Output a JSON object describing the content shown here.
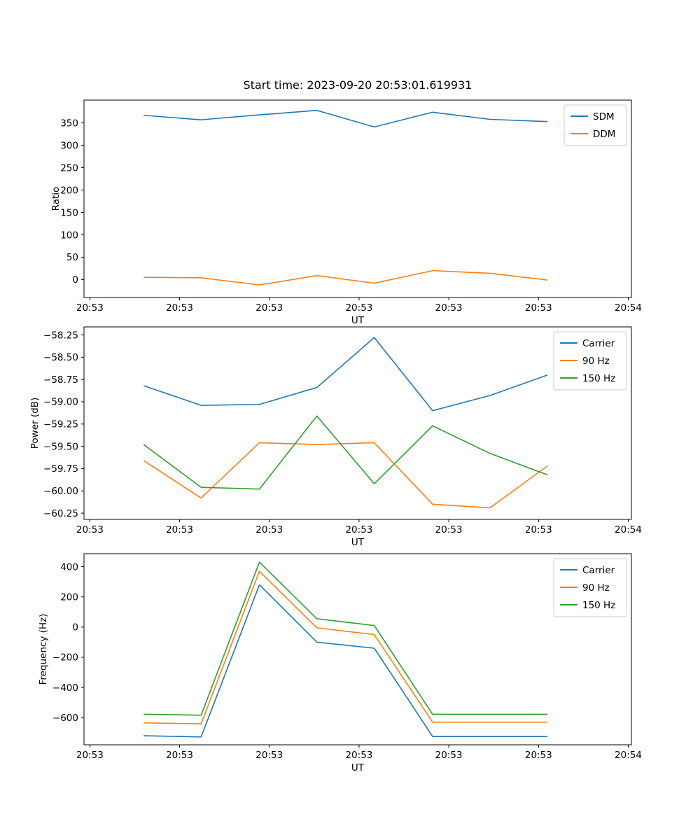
{
  "figure": {
    "title": "Start time: 2023-09-20 20:53:01.619931"
  },
  "colors": {
    "blue": "#1f77b4",
    "orange": "#ff7f0e",
    "green": "#2ca02c",
    "spine": "#000000",
    "legend_border": "#cccccc",
    "background": "#ffffff"
  },
  "chart_data": [
    {
      "type": "line",
      "title": "",
      "xlabel": "UT",
      "ylabel": "Ratio",
      "x_seconds": [
        6.0,
        12.4,
        18.9,
        25.3,
        31.7,
        38.2,
        44.6,
        51.0
      ],
      "xlim": [
        -0.65,
        60.35
      ],
      "xtick_positions": [
        0,
        10,
        20,
        30,
        40,
        50,
        60
      ],
      "xtick_labels": [
        "20:53",
        "20:53",
        "20:53",
        "20:53",
        "20:53",
        "20:53",
        "20:54"
      ],
      "ylim": [
        -40,
        401
      ],
      "ytick_values": [
        0,
        50,
        100,
        150,
        200,
        250,
        300,
        350
      ],
      "ytick_labels": [
        "0",
        "50",
        "100",
        "150",
        "200",
        "250",
        "300",
        "350"
      ],
      "grid": false,
      "legend_position": "upper right",
      "series": [
        {
          "name": "SDM",
          "color": "#1f77b4",
          "values": [
            367,
            357,
            368,
            378,
            341,
            374,
            358,
            353
          ]
        },
        {
          "name": "DDM",
          "color": "#ff7f0e",
          "values": [
            5,
            4,
            -12,
            9,
            -8,
            20,
            14,
            -1
          ]
        }
      ]
    },
    {
      "type": "line",
      "title": "",
      "xlabel": "UT",
      "ylabel": "Power (dB)",
      "x_seconds": [
        6.0,
        12.4,
        18.9,
        25.3,
        31.7,
        38.2,
        44.6,
        51.0
      ],
      "xlim": [
        -0.65,
        60.35
      ],
      "xtick_positions": [
        0,
        10,
        20,
        30,
        40,
        50,
        60
      ],
      "xtick_labels": [
        "20:53",
        "20:53",
        "20:53",
        "20:53",
        "20:53",
        "20:53",
        "20:54"
      ],
      "ylim": [
        -60.32,
        -58.16
      ],
      "ytick_values": [
        -58.25,
        -58.5,
        -58.75,
        -59.0,
        -59.25,
        -59.5,
        -59.75,
        -60.0,
        -60.25
      ],
      "ytick_labels": [
        "−58.25",
        "−58.50",
        "−58.75",
        "−59.00",
        "−59.25",
        "−59.50",
        "−59.75",
        "−60.00",
        "−60.25"
      ],
      "grid": false,
      "legend_position": "upper right",
      "series": [
        {
          "name": "Carrier",
          "color": "#1f77b4",
          "values": [
            -58.82,
            -59.04,
            -59.03,
            -58.84,
            -58.28,
            -59.1,
            -58.93,
            -58.7
          ]
        },
        {
          "name": "90 Hz",
          "color": "#ff7f0e",
          "values": [
            -59.66,
            -60.08,
            -59.46,
            -59.48,
            -59.46,
            -60.15,
            -60.19,
            -59.72
          ]
        },
        {
          "name": "150 Hz",
          "color": "#2ca02c",
          "values": [
            -59.48,
            -59.96,
            -59.98,
            -59.16,
            -59.92,
            -59.27,
            -59.58,
            -59.82
          ]
        }
      ]
    },
    {
      "type": "line",
      "title": "",
      "xlabel": "UT",
      "ylabel": "Frequency (Hz)",
      "x_seconds": [
        6.0,
        12.4,
        18.9,
        25.3,
        31.7,
        38.2,
        44.6,
        51.0
      ],
      "xlim": [
        -0.65,
        60.35
      ],
      "xtick_positions": [
        0,
        10,
        20,
        30,
        40,
        50,
        60
      ],
      "xtick_labels": [
        "20:53",
        "20:53",
        "20:53",
        "20:53",
        "20:53",
        "20:53",
        "20:54"
      ],
      "ylim": [
        -780,
        486
      ],
      "ytick_values": [
        400,
        200,
        0,
        -200,
        -400,
        -600
      ],
      "ytick_labels": [
        "400",
        "200",
        "0",
        "−200",
        "−400",
        "−600"
      ],
      "grid": false,
      "legend_position": "upper right",
      "series": [
        {
          "name": "Carrier",
          "color": "#1f77b4",
          "values": [
            -720,
            -728,
            280,
            -100,
            -140,
            -725,
            -725,
            -725
          ]
        },
        {
          "name": "90 Hz",
          "color": "#ff7f0e",
          "values": [
            -635,
            -641,
            370,
            -5,
            -50,
            -630,
            -630,
            -630
          ]
        },
        {
          "name": "150 Hz",
          "color": "#2ca02c",
          "values": [
            -578,
            -584,
            430,
            55,
            10,
            -578,
            -578,
            -578
          ]
        }
      ]
    }
  ]
}
